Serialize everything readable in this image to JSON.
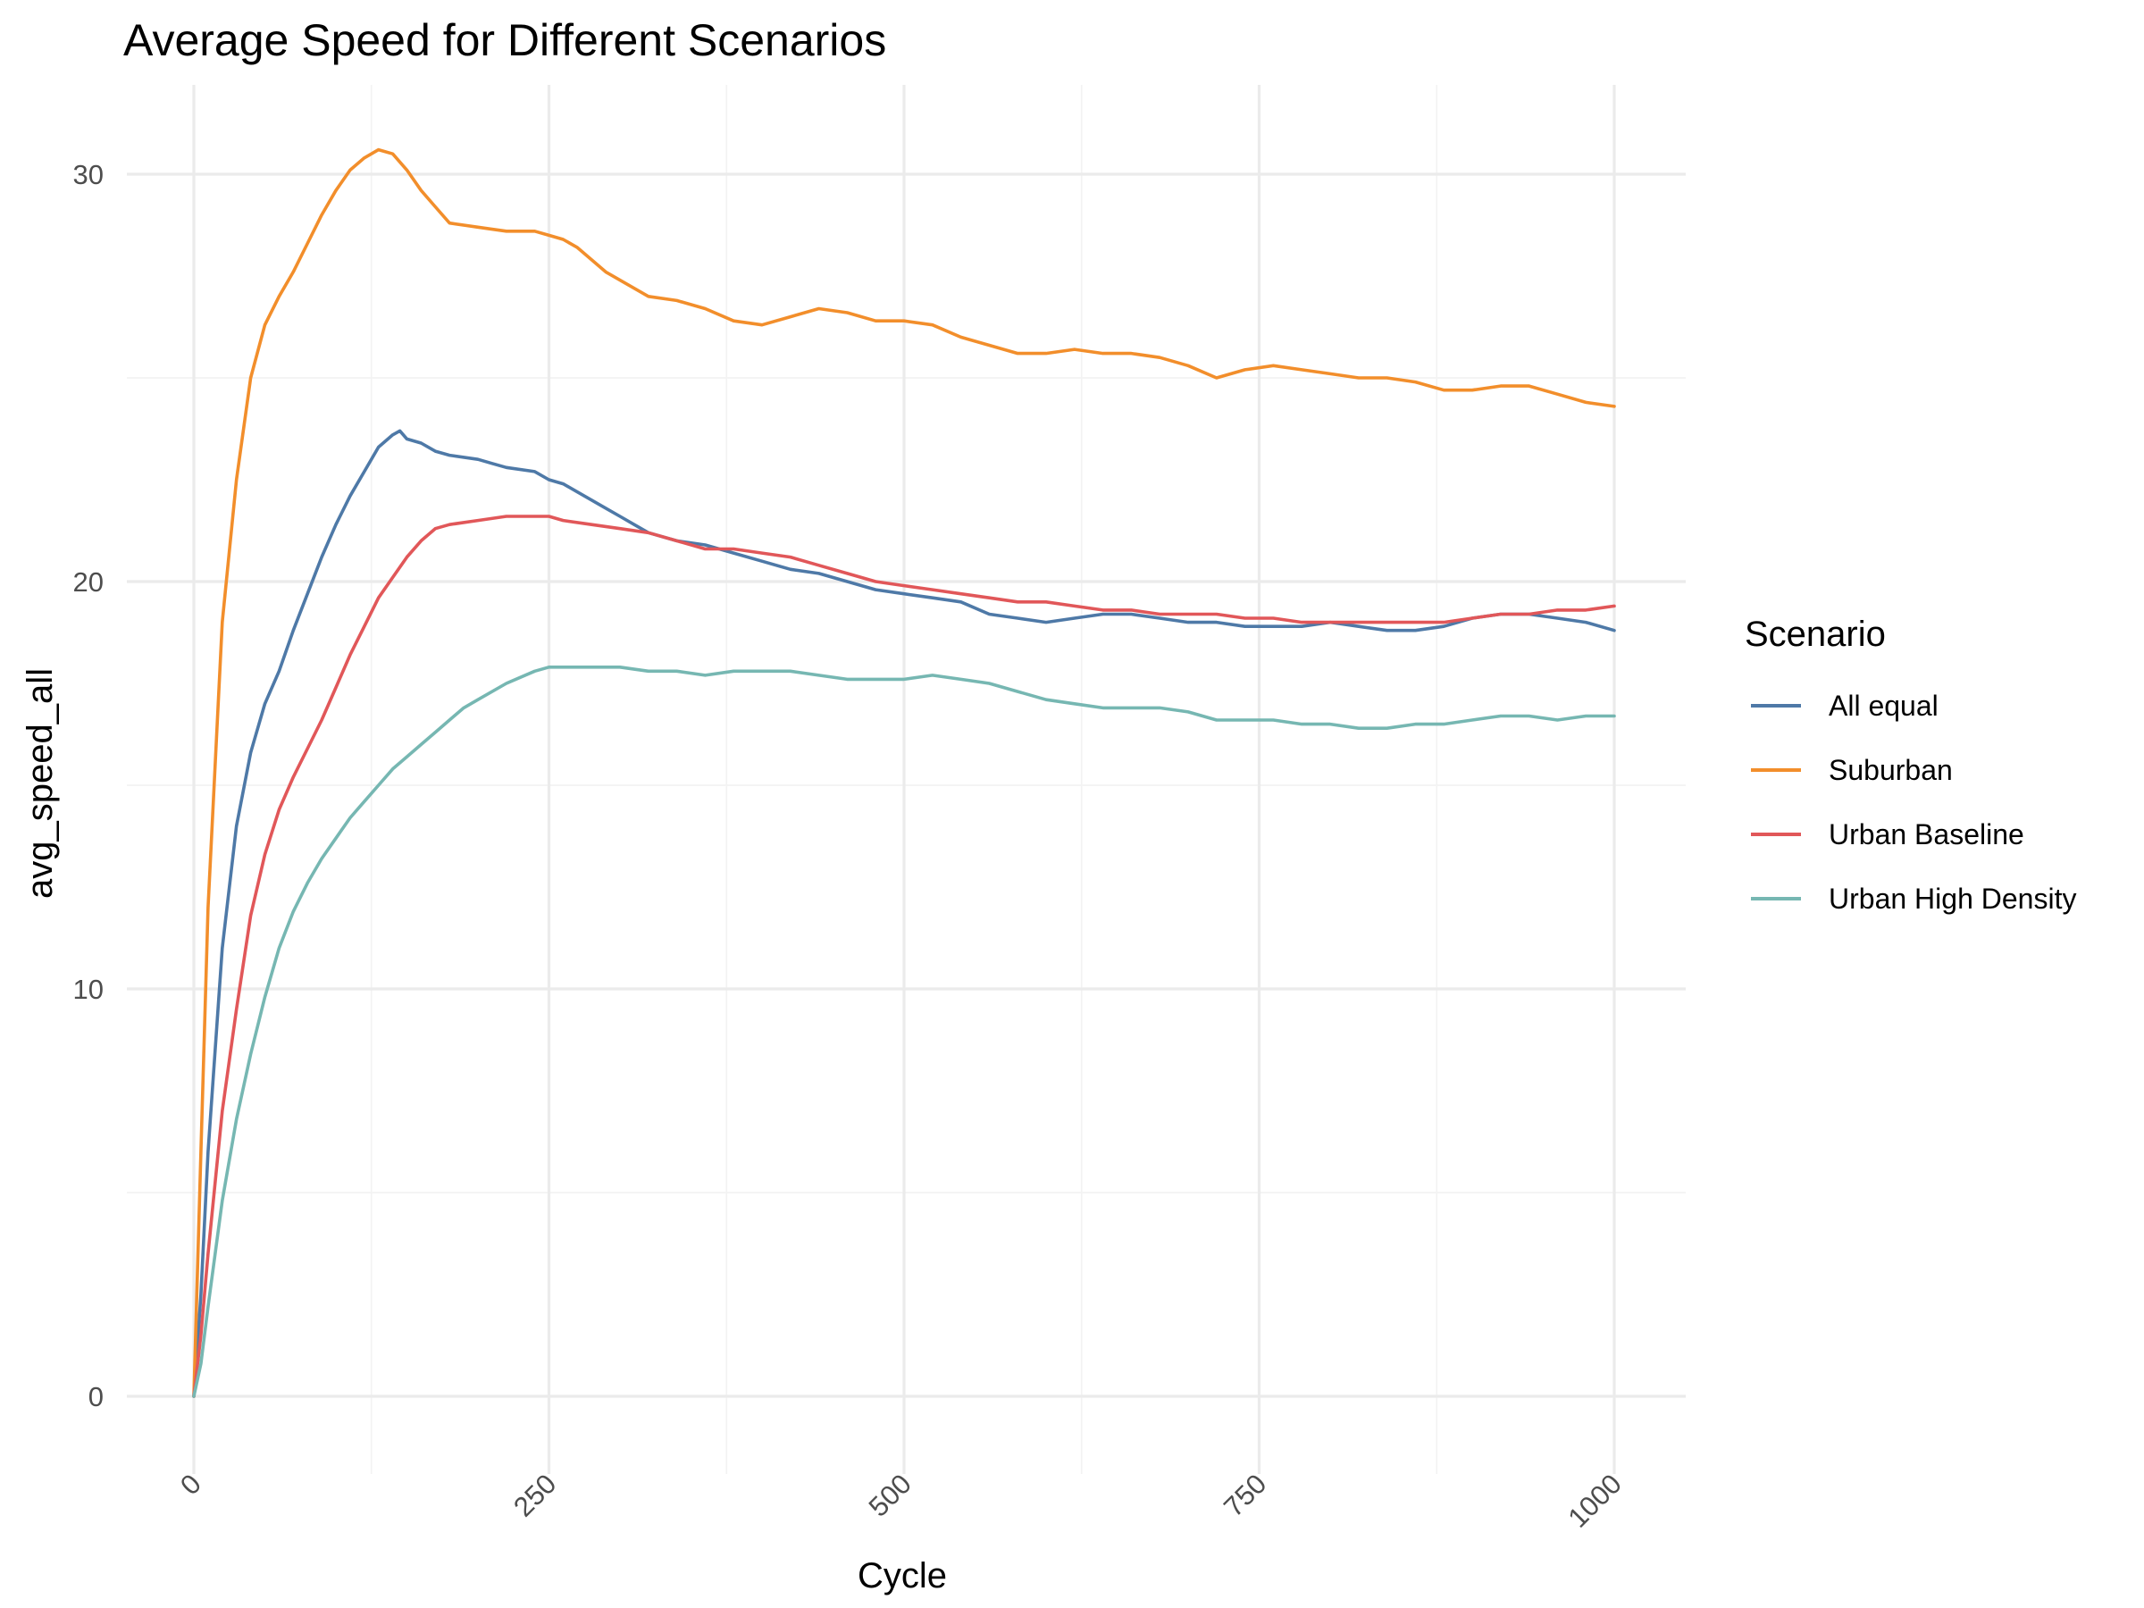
{
  "chart_data": {
    "type": "line",
    "title": "Average Speed for Different Scenarios",
    "xlabel": "Cycle",
    "ylabel": "avg_speed_all",
    "xlim": [
      -48,
      1000
    ],
    "ylim": [
      -1.5,
      32
    ],
    "x_ticks": [
      0,
      250,
      500,
      750,
      1000
    ],
    "x_tick_labels": [
      "0",
      "250",
      "500",
      "750",
      "1000"
    ],
    "y_ticks": [
      0,
      10,
      20,
      30
    ],
    "y_tick_labels": [
      "0",
      "10",
      "20",
      "30"
    ],
    "grid": true,
    "legend_title": "Scenario",
    "legend_position": "right",
    "series": [
      {
        "name": "All equal",
        "color": "#4e79a7",
        "points": [
          [
            0,
            0
          ],
          [
            5,
            2.5
          ],
          [
            10,
            6
          ],
          [
            20,
            11
          ],
          [
            30,
            14
          ],
          [
            40,
            15.8
          ],
          [
            50,
            17
          ],
          [
            60,
            17.8
          ],
          [
            70,
            18.8
          ],
          [
            80,
            19.7
          ],
          [
            90,
            20.6
          ],
          [
            100,
            21.4
          ],
          [
            110,
            22.1
          ],
          [
            120,
            22.7
          ],
          [
            130,
            23.3
          ],
          [
            140,
            23.6
          ],
          [
            145,
            23.7
          ],
          [
            150,
            23.5
          ],
          [
            160,
            23.4
          ],
          [
            170,
            23.2
          ],
          [
            180,
            23.1
          ],
          [
            200,
            23.0
          ],
          [
            210,
            22.9
          ],
          [
            220,
            22.8
          ],
          [
            240,
            22.7
          ],
          [
            250,
            22.5
          ],
          [
            260,
            22.4
          ],
          [
            270,
            22.2
          ],
          [
            280,
            22.0
          ],
          [
            290,
            21.8
          ],
          [
            300,
            21.6
          ],
          [
            310,
            21.4
          ],
          [
            320,
            21.2
          ],
          [
            340,
            21.0
          ],
          [
            360,
            20.9
          ],
          [
            380,
            20.7
          ],
          [
            400,
            20.5
          ],
          [
            420,
            20.3
          ],
          [
            440,
            20.2
          ],
          [
            460,
            20.0
          ],
          [
            480,
            19.8
          ],
          [
            500,
            19.7
          ],
          [
            520,
            19.6
          ],
          [
            540,
            19.5
          ],
          [
            560,
            19.2
          ],
          [
            580,
            19.1
          ],
          [
            600,
            19.0
          ],
          [
            620,
            19.1
          ],
          [
            640,
            19.2
          ],
          [
            660,
            19.2
          ],
          [
            680,
            19.1
          ],
          [
            700,
            19.0
          ],
          [
            720,
            19.0
          ],
          [
            740,
            18.9
          ],
          [
            760,
            18.9
          ],
          [
            780,
            18.9
          ],
          [
            800,
            19.0
          ],
          [
            820,
            18.9
          ],
          [
            840,
            18.8
          ],
          [
            860,
            18.8
          ],
          [
            880,
            18.9
          ],
          [
            900,
            19.1
          ],
          [
            920,
            19.2
          ],
          [
            940,
            19.2
          ],
          [
            960,
            19.1
          ],
          [
            980,
            19.0
          ],
          [
            1000,
            18.8
          ]
        ]
      },
      {
        "name": "Suburban",
        "color": "#f28e2b",
        "points": [
          [
            0,
            0
          ],
          [
            5,
            6
          ],
          [
            10,
            12
          ],
          [
            20,
            19
          ],
          [
            30,
            22.5
          ],
          [
            40,
            25
          ],
          [
            50,
            26.3
          ],
          [
            60,
            27
          ],
          [
            70,
            27.6
          ],
          [
            80,
            28.3
          ],
          [
            90,
            29
          ],
          [
            100,
            29.6
          ],
          [
            110,
            30.1
          ],
          [
            120,
            30.4
          ],
          [
            130,
            30.6
          ],
          [
            140,
            30.5
          ],
          [
            150,
            30.1
          ],
          [
            160,
            29.6
          ],
          [
            170,
            29.2
          ],
          [
            180,
            28.8
          ],
          [
            200,
            28.7
          ],
          [
            220,
            28.6
          ],
          [
            240,
            28.6
          ],
          [
            250,
            28.5
          ],
          [
            260,
            28.4
          ],
          [
            270,
            28.2
          ],
          [
            280,
            27.9
          ],
          [
            290,
            27.6
          ],
          [
            300,
            27.4
          ],
          [
            320,
            27.0
          ],
          [
            340,
            26.9
          ],
          [
            360,
            26.7
          ],
          [
            380,
            26.4
          ],
          [
            400,
            26.3
          ],
          [
            420,
            26.5
          ],
          [
            440,
            26.7
          ],
          [
            460,
            26.6
          ],
          [
            480,
            26.4
          ],
          [
            500,
            26.4
          ],
          [
            520,
            26.3
          ],
          [
            540,
            26.0
          ],
          [
            560,
            25.8
          ],
          [
            580,
            25.6
          ],
          [
            600,
            25.6
          ],
          [
            620,
            25.7
          ],
          [
            640,
            25.6
          ],
          [
            660,
            25.6
          ],
          [
            680,
            25.5
          ],
          [
            700,
            25.3
          ],
          [
            720,
            25.0
          ],
          [
            740,
            25.2
          ],
          [
            760,
            25.3
          ],
          [
            780,
            25.2
          ],
          [
            800,
            25.1
          ],
          [
            820,
            25.0
          ],
          [
            840,
            25.0
          ],
          [
            860,
            24.9
          ],
          [
            880,
            24.7
          ],
          [
            900,
            24.7
          ],
          [
            920,
            24.8
          ],
          [
            940,
            24.8
          ],
          [
            960,
            24.6
          ],
          [
            980,
            24.4
          ],
          [
            1000,
            24.3
          ]
        ]
      },
      {
        "name": "Urban Baseline",
        "color": "#e15759",
        "points": [
          [
            0,
            0
          ],
          [
            5,
            1.5
          ],
          [
            10,
            3.5
          ],
          [
            20,
            7
          ],
          [
            30,
            9.5
          ],
          [
            40,
            11.8
          ],
          [
            50,
            13.3
          ],
          [
            60,
            14.4
          ],
          [
            70,
            15.2
          ],
          [
            80,
            15.9
          ],
          [
            90,
            16.6
          ],
          [
            100,
            17.4
          ],
          [
            110,
            18.2
          ],
          [
            120,
            18.9
          ],
          [
            130,
            19.6
          ],
          [
            140,
            20.1
          ],
          [
            150,
            20.6
          ],
          [
            160,
            21.0
          ],
          [
            170,
            21.3
          ],
          [
            180,
            21.4
          ],
          [
            200,
            21.5
          ],
          [
            220,
            21.6
          ],
          [
            240,
            21.6
          ],
          [
            250,
            21.6
          ],
          [
            260,
            21.5
          ],
          [
            280,
            21.4
          ],
          [
            300,
            21.3
          ],
          [
            320,
            21.2
          ],
          [
            340,
            21.0
          ],
          [
            360,
            20.8
          ],
          [
            380,
            20.8
          ],
          [
            400,
            20.7
          ],
          [
            420,
            20.6
          ],
          [
            440,
            20.4
          ],
          [
            460,
            20.2
          ],
          [
            480,
            20.0
          ],
          [
            500,
            19.9
          ],
          [
            520,
            19.8
          ],
          [
            540,
            19.7
          ],
          [
            560,
            19.6
          ],
          [
            580,
            19.5
          ],
          [
            600,
            19.5
          ],
          [
            620,
            19.4
          ],
          [
            640,
            19.3
          ],
          [
            660,
            19.3
          ],
          [
            680,
            19.2
          ],
          [
            700,
            19.2
          ],
          [
            720,
            19.2
          ],
          [
            740,
            19.1
          ],
          [
            760,
            19.1
          ],
          [
            780,
            19.0
          ],
          [
            800,
            19.0
          ],
          [
            820,
            19.0
          ],
          [
            840,
            19.0
          ],
          [
            860,
            19.0
          ],
          [
            880,
            19.0
          ],
          [
            900,
            19.1
          ],
          [
            920,
            19.2
          ],
          [
            940,
            19.2
          ],
          [
            960,
            19.3
          ],
          [
            980,
            19.3
          ],
          [
            1000,
            19.4
          ]
        ]
      },
      {
        "name": "Urban High Density",
        "color": "#76b7b2",
        "points": [
          [
            0,
            0
          ],
          [
            5,
            0.8
          ],
          [
            10,
            2.2
          ],
          [
            20,
            4.8
          ],
          [
            30,
            6.8
          ],
          [
            40,
            8.4
          ],
          [
            50,
            9.8
          ],
          [
            60,
            11.0
          ],
          [
            70,
            11.9
          ],
          [
            80,
            12.6
          ],
          [
            90,
            13.2
          ],
          [
            100,
            13.7
          ],
          [
            110,
            14.2
          ],
          [
            120,
            14.6
          ],
          [
            130,
            15.0
          ],
          [
            140,
            15.4
          ],
          [
            150,
            15.7
          ],
          [
            160,
            16.0
          ],
          [
            170,
            16.3
          ],
          [
            180,
            16.6
          ],
          [
            190,
            16.9
          ],
          [
            200,
            17.1
          ],
          [
            220,
            17.5
          ],
          [
            240,
            17.8
          ],
          [
            250,
            17.9
          ],
          [
            260,
            17.9
          ],
          [
            280,
            17.9
          ],
          [
            300,
            17.9
          ],
          [
            320,
            17.8
          ],
          [
            340,
            17.8
          ],
          [
            360,
            17.7
          ],
          [
            380,
            17.8
          ],
          [
            400,
            17.8
          ],
          [
            420,
            17.8
          ],
          [
            440,
            17.7
          ],
          [
            460,
            17.6
          ],
          [
            480,
            17.6
          ],
          [
            500,
            17.6
          ],
          [
            520,
            17.7
          ],
          [
            540,
            17.6
          ],
          [
            560,
            17.5
          ],
          [
            580,
            17.3
          ],
          [
            600,
            17.1
          ],
          [
            620,
            17.0
          ],
          [
            640,
            16.9
          ],
          [
            660,
            16.9
          ],
          [
            680,
            16.9
          ],
          [
            700,
            16.8
          ],
          [
            720,
            16.6
          ],
          [
            740,
            16.6
          ],
          [
            760,
            16.6
          ],
          [
            780,
            16.5
          ],
          [
            800,
            16.5
          ],
          [
            820,
            16.4
          ],
          [
            840,
            16.4
          ],
          [
            860,
            16.5
          ],
          [
            880,
            16.5
          ],
          [
            900,
            16.6
          ],
          [
            920,
            16.7
          ],
          [
            940,
            16.7
          ],
          [
            960,
            16.6
          ],
          [
            980,
            16.7
          ],
          [
            1000,
            16.7
          ]
        ]
      }
    ]
  }
}
